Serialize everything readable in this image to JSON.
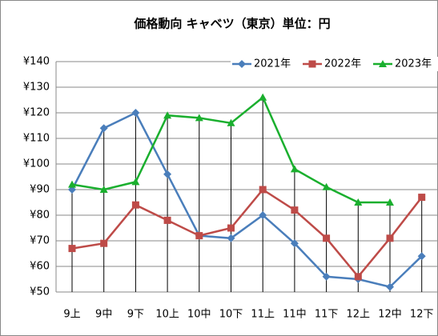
{
  "chart_data": {
    "type": "line",
    "title": "価格動向 キャベツ（東京）単位：円",
    "categories": [
      "9上",
      "9中",
      "9下",
      "10上",
      "10中",
      "10下",
      "11上",
      "11中",
      "11下",
      "12上",
      "12中",
      "12下"
    ],
    "series": [
      {
        "name": "2021年",
        "color": "#4a7ebb",
        "marker": "diamond",
        "values": [
          90,
          114,
          120,
          96,
          72,
          71,
          80,
          69,
          56,
          55,
          52,
          64
        ]
      },
      {
        "name": "2022年",
        "color": "#be4b48",
        "marker": "square",
        "values": [
          67,
          69,
          84,
          78,
          72,
          75,
          90,
          82,
          71,
          56,
          71,
          87
        ]
      },
      {
        "name": "2023年",
        "color": "#1aaf2e",
        "marker": "triangle",
        "values": [
          92,
          90,
          93,
          119,
          118,
          116,
          126,
          98,
          91,
          85,
          85,
          null
        ]
      }
    ],
    "ylim": [
      50,
      140
    ],
    "yticks": [
      {
        "value": 50,
        "label": "¥50"
      },
      {
        "value": 60,
        "label": "¥60"
      },
      {
        "value": 70,
        "label": "¥70"
      },
      {
        "value": 80,
        "label": "¥80"
      },
      {
        "value": 90,
        "label": "¥90"
      },
      {
        "value": 100,
        "label": "¥100"
      },
      {
        "value": 110,
        "label": "¥110"
      },
      {
        "value": 120,
        "label": "¥120"
      },
      {
        "value": 130,
        "label": "¥130"
      },
      {
        "value": 140,
        "label": "¥140"
      }
    ],
    "grid": true,
    "drop_lines": true,
    "legend": "top-right"
  }
}
